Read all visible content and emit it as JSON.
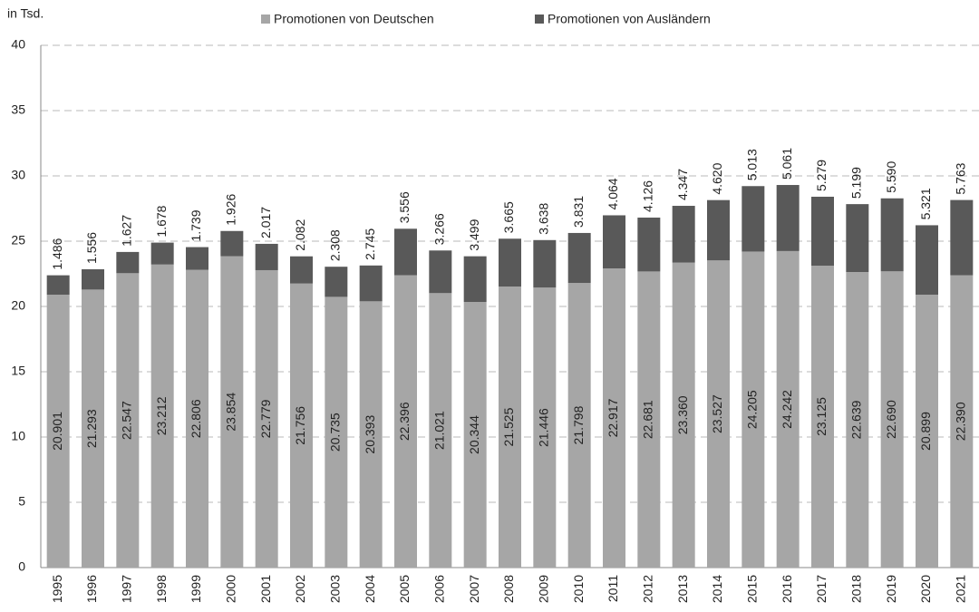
{
  "chart_data": {
    "type": "stacked-bar",
    "y_label": "in Tsd.",
    "categories": [
      "1995",
      "1996",
      "1997",
      "1998",
      "1999",
      "2000",
      "2001",
      "2002",
      "2003",
      "2004",
      "2005",
      "2006",
      "2007",
      "2008",
      "2009",
      "2010",
      "2011",
      "2012",
      "2013",
      "2014",
      "2015",
      "2016",
      "2017",
      "2018",
      "2019",
      "2020",
      "2021"
    ],
    "series": [
      {
        "name": "Promotionen von Deutschen",
        "color": "#a6a6a6",
        "values": [
          20.901,
          21.293,
          22.547,
          23.212,
          22.806,
          23.854,
          22.779,
          21.756,
          20.735,
          20.393,
          22.396,
          21.021,
          20.344,
          21.525,
          21.446,
          21.798,
          22.917,
          22.681,
          23.36,
          23.527,
          24.205,
          24.242,
          23.125,
          22.639,
          22.69,
          20.899,
          22.39
        ],
        "value_labels": [
          "20.901",
          "21.293",
          "22.547",
          "23.212",
          "22.806",
          "23.854",
          "22.779",
          "21.756",
          "20.735",
          "20.393",
          "22.396",
          "21.021",
          "20.344",
          "21.525",
          "21.446",
          "21.798",
          "22.917",
          "22.681",
          "23.360",
          "23.527",
          "24.205",
          "24.242",
          "23.125",
          "22.639",
          "22.690",
          "20.899",
          "22.390"
        ]
      },
      {
        "name": "Promotionen von Ausländern",
        "color": "#595959",
        "values": [
          1.486,
          1.556,
          1.627,
          1.678,
          1.739,
          1.926,
          2.017,
          2.082,
          2.308,
          2.745,
          3.556,
          3.266,
          3.499,
          3.665,
          3.638,
          3.831,
          4.064,
          4.126,
          4.347,
          4.62,
          5.013,
          5.061,
          5.279,
          5.199,
          5.59,
          5.321,
          5.763
        ],
        "value_labels": [
          "1.486",
          "1.556",
          "1.627",
          "1.678",
          "1.739",
          "1.926",
          "2.017",
          "2.082",
          "2.308",
          "2.745",
          "3.556",
          "3.266",
          "3.499",
          "3.665",
          "3.638",
          "3.831",
          "4.064",
          "4.126",
          "4.347",
          "4.620",
          "5.013",
          "5.061",
          "5.279",
          "5.199",
          "5.590",
          "5.321",
          "5.763"
        ]
      }
    ],
    "ylim": [
      0,
      40
    ],
    "yticks": [
      0,
      5,
      10,
      15,
      20,
      25,
      30,
      35,
      40
    ],
    "grid": true,
    "legend": "top"
  }
}
